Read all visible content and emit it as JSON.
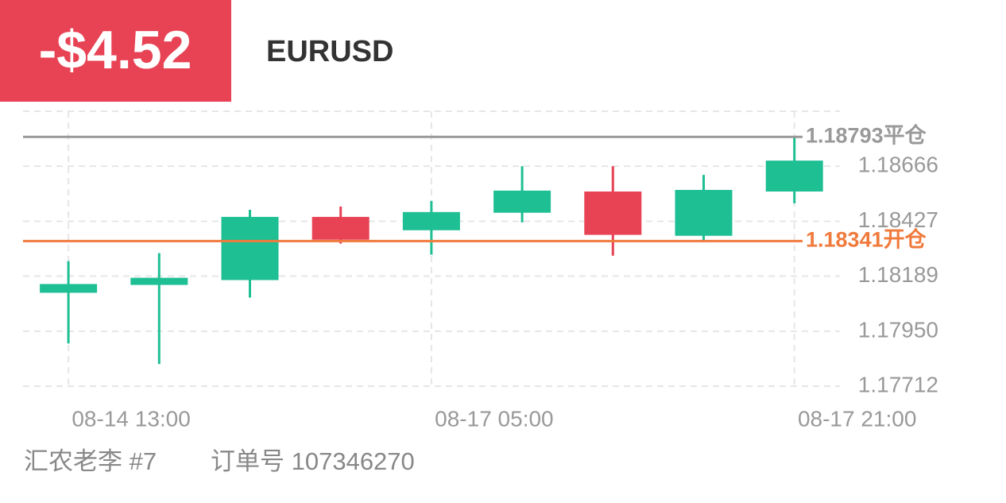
{
  "header": {
    "pnl": "-$4.52",
    "symbol": "EURUSD"
  },
  "footer": {
    "account": "汇农老李 #7",
    "order": "订单号 107346270"
  },
  "chart_data": {
    "type": "candlestick",
    "categories": [
      "08-14 13:00",
      null,
      null,
      null,
      "08-17 05:00",
      null,
      null,
      null,
      "08-17 21:00"
    ],
    "open": [
      1.18117,
      1.18151,
      1.18172,
      1.18446,
      1.18388,
      1.18464,
      1.18556,
      1.18364,
      1.18556
    ],
    "high": [
      1.18254,
      1.18289,
      1.18477,
      1.18491,
      1.18515,
      1.18666,
      1.18666,
      1.18628,
      1.18796
    ],
    "low": [
      1.17897,
      1.17808,
      1.18096,
      1.1833,
      1.18282,
      1.18422,
      1.18278,
      1.18337,
      1.18505
    ],
    "close": [
      1.18155,
      1.18182,
      1.18446,
      1.18347,
      1.18467,
      1.1856,
      1.18368,
      1.18563,
      1.1869
    ],
    "up_color": "#1fbf94",
    "down_color": "#e84355",
    "ylim": [
      1.17712,
      1.18904
    ],
    "yticks": [
      {
        "value": 1.17712,
        "label": "1.17712"
      },
      {
        "value": 1.1795,
        "label": "1.17950"
      },
      1.18189,
      1.18427,
      1.18666
    ],
    "grid": true,
    "lines": [
      {
        "value": 1.18793,
        "label": "1.18793平仓",
        "color": "#999999"
      },
      {
        "value": 1.18341,
        "label": "1.18341开仓",
        "color": "#f07a3c"
      }
    ]
  }
}
